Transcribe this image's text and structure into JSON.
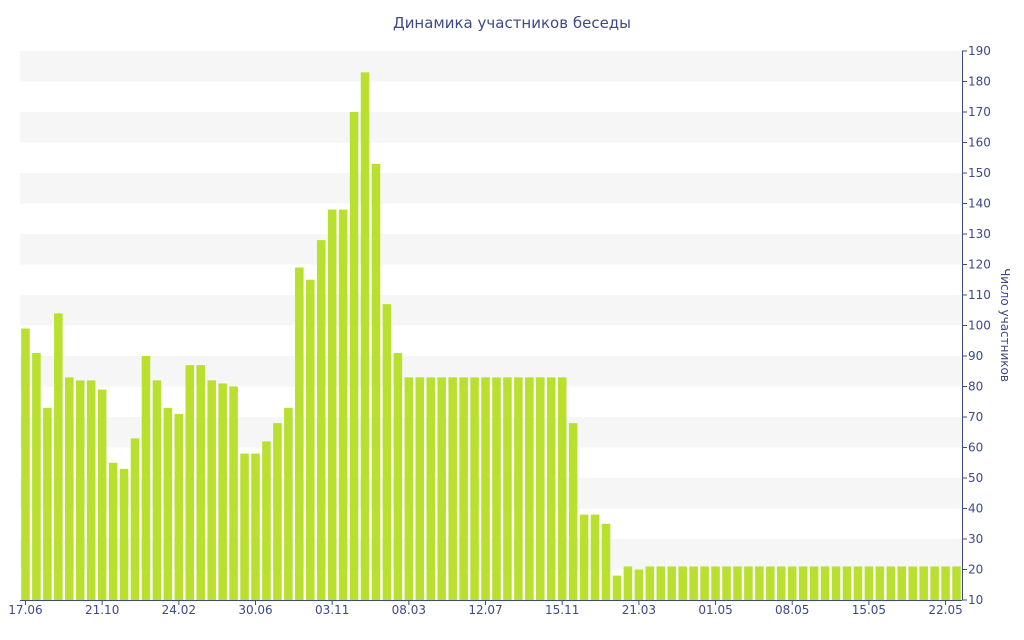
{
  "chart_data": {
    "type": "bar",
    "title": "Динамика участников беседы",
    "xlabel": "",
    "ylabel": "Число участников",
    "ylim": [
      10,
      190
    ],
    "yticks": [
      10,
      20,
      30,
      40,
      50,
      60,
      70,
      80,
      90,
      100,
      110,
      120,
      130,
      140,
      150,
      160,
      170,
      180,
      190
    ],
    "y_axis_side": "right",
    "grid": "horizontal alternating bands",
    "x_tick_labels": [
      {
        "index": 0,
        "label": "17.06"
      },
      {
        "index": 7,
        "label": "21.10"
      },
      {
        "index": 14,
        "label": "24.02"
      },
      {
        "index": 21,
        "label": "30.06"
      },
      {
        "index": 28,
        "label": "03.11"
      },
      {
        "index": 35,
        "label": "08.03"
      },
      {
        "index": 42,
        "label": "12.07"
      },
      {
        "index": 49,
        "label": "15.11"
      },
      {
        "index": 56,
        "label": "21.03"
      },
      {
        "index": 63,
        "label": "01.05"
      },
      {
        "index": 70,
        "label": "08.05"
      },
      {
        "index": 77,
        "label": "15.05"
      },
      {
        "index": 84,
        "label": "22.05"
      }
    ],
    "series": [
      {
        "values": [
          99,
          91,
          73,
          104,
          83,
          82,
          82,
          79,
          55,
          53,
          63,
          90,
          82,
          73,
          71,
          87,
          87,
          82,
          81,
          80,
          58,
          58,
          62,
          68,
          73,
          119,
          115,
          128,
          138,
          138,
          170,
          183,
          153,
          107,
          91,
          83,
          83,
          83,
          83,
          83,
          83,
          83,
          83,
          83,
          83,
          83,
          83,
          83,
          83,
          83,
          68,
          38,
          38,
          35,
          18,
          21,
          20,
          21,
          21,
          21,
          21,
          21,
          21,
          21,
          21,
          21,
          21,
          21,
          21,
          21,
          21,
          21,
          21,
          21,
          21,
          21,
          21,
          21,
          21,
          21,
          21,
          21,
          21,
          21,
          21,
          21
        ],
        "color": "#b9e02e"
      }
    ]
  }
}
